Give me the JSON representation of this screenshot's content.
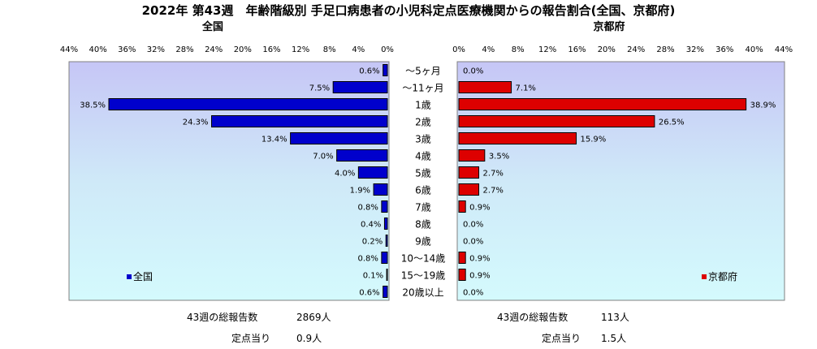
{
  "chart_data": {
    "type": "bar",
    "title": "2022年 第43週　年齢階級別 手足口病患者の小児科定点医療機関からの報告割合(全国、京都府)",
    "categories": [
      "～5ヶ月",
      "～11ヶ月",
      "1歳",
      "2歳",
      "3歳",
      "4歳",
      "5歳",
      "6歳",
      "7歳",
      "8歳",
      "9歳",
      "10～14歳",
      "15～19歳",
      "20歳以上"
    ],
    "panels": [
      {
        "subtitle": "全国",
        "legend": "全国",
        "color": "#0000CC",
        "direction": "left",
        "xlim": [
          0,
          44
        ],
        "ticks": [
          "44%",
          "40%",
          "36%",
          "32%",
          "28%",
          "24%",
          "20%",
          "16%",
          "12%",
          "8%",
          "4%",
          "0%"
        ],
        "values": [
          0.6,
          7.5,
          38.5,
          24.3,
          13.4,
          7.0,
          4.0,
          1.9,
          0.8,
          0.4,
          0.2,
          0.8,
          0.1,
          0.6
        ],
        "labels": [
          "0.6%",
          "7.5%",
          "38.5%",
          "24.3%",
          "13.4%",
          "7.0%",
          "4.0%",
          "1.9%",
          "0.8%",
          "0.4%",
          "0.2%",
          "0.8%",
          "0.1%",
          "0.6%"
        ],
        "footer": [
          {
            "label": "43週の総報告数",
            "value": "2869人"
          },
          {
            "label": "定点当り",
            "value": "0.9人"
          }
        ]
      },
      {
        "subtitle": "京都府",
        "legend": "京都府",
        "color": "#DD0000",
        "direction": "right",
        "xlim": [
          0,
          44
        ],
        "ticks": [
          "0%",
          "4%",
          "8%",
          "12%",
          "16%",
          "20%",
          "24%",
          "28%",
          "32%",
          "36%",
          "40%",
          "44%"
        ],
        "values": [
          0.0,
          7.1,
          38.9,
          26.5,
          15.9,
          3.5,
          2.7,
          2.7,
          0.9,
          0.0,
          0.0,
          0.9,
          0.9,
          0.0
        ],
        "labels": [
          "0.0%",
          "7.1%",
          "38.9%",
          "26.5%",
          "15.9%",
          "3.5%",
          "2.7%",
          "2.7%",
          "0.9%",
          "0.0%",
          "0.0%",
          "0.9%",
          "0.9%",
          "0.0%"
        ],
        "footer": [
          {
            "label": "43週の総報告数",
            "value": "113人"
          },
          {
            "label": "定点当り",
            "value": "1.5人"
          }
        ]
      }
    ]
  }
}
